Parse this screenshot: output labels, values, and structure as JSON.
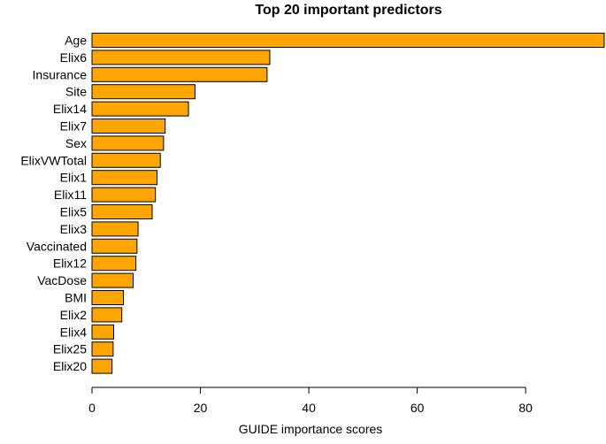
{
  "chart_data": {
    "type": "bar",
    "orientation": "horizontal",
    "title": "Top 20 important predictors",
    "xlabel": "GUIDE importance scores",
    "ylabel": "",
    "categories": [
      "Age",
      "Elix6",
      "Insurance",
      "Site",
      "Elix14",
      "Elix7",
      "Sex",
      "ElixVWTotal",
      "Elix1",
      "Elix11",
      "Elix5",
      "Elix3",
      "Vaccinated",
      "Elix12",
      "VacDose",
      "BMI",
      "Elix2",
      "Elix4",
      "Elix25",
      "Elix20"
    ],
    "values": [
      94.5,
      32.8,
      32.3,
      19.0,
      17.8,
      13.5,
      13.2,
      12.6,
      12.0,
      11.7,
      11.1,
      8.5,
      8.3,
      8.1,
      7.6,
      5.8,
      5.5,
      4.0,
      3.9,
      3.7
    ],
    "xlim": [
      0,
      94.5
    ],
    "xticks": [
      0,
      20,
      40,
      60,
      80
    ],
    "bar_color": "#FFA500",
    "bar_edge_color": "#000000",
    "grid": false,
    "legend": "none"
  }
}
